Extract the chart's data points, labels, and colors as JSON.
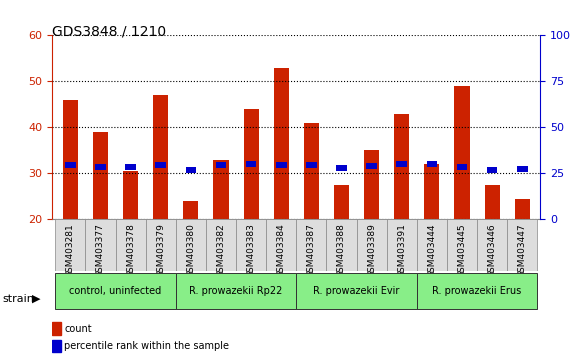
{
  "title": "GDS3848 / 1210",
  "samples": [
    "GSM403281",
    "GSM403377",
    "GSM403378",
    "GSM403379",
    "GSM403380",
    "GSM403382",
    "GSM403383",
    "GSM403384",
    "GSM403387",
    "GSM403388",
    "GSM403389",
    "GSM403391",
    "GSM403444",
    "GSM403445",
    "GSM403446",
    "GSM403447"
  ],
  "counts": [
    46,
    39,
    30.5,
    47,
    24,
    33,
    44,
    53,
    41,
    27.5,
    35,
    43,
    32,
    49,
    27.5,
    24.5
  ],
  "percentiles": [
    29.5,
    28.5,
    28.5,
    29.5,
    27,
    29.5,
    30,
    29.5,
    29.5,
    28,
    29,
    30,
    30,
    28.5,
    27,
    27.5
  ],
  "ylim_left": [
    20,
    60
  ],
  "ylim_right": [
    0,
    100
  ],
  "yticks_left": [
    20,
    30,
    40,
    50,
    60
  ],
  "yticks_right": [
    0,
    25,
    50,
    75,
    100
  ],
  "bar_color": "#cc2200",
  "percentile_color": "#0000cc",
  "grid_color": "#000000",
  "bg_color": "#ffffff",
  "title_color": "#000000",
  "left_axis_color": "#cc2200",
  "right_axis_color": "#0000cc",
  "strain_groups": [
    {
      "label": "control, uninfected",
      "start": 0,
      "end": 4,
      "color": "#88ee88"
    },
    {
      "label": "R. prowazekii Rp22",
      "start": 4,
      "end": 8,
      "color": "#88ee88"
    },
    {
      "label": "R. prowazekii Evir",
      "start": 8,
      "end": 12,
      "color": "#88ee88"
    },
    {
      "label": "R. prowazekii Erus",
      "start": 12,
      "end": 16,
      "color": "#88ee88"
    }
  ],
  "legend_count_color": "#cc2200",
  "legend_pct_color": "#0000cc",
  "legend_count_label": "count",
  "legend_pct_label": "percentile rank within the sample",
  "strain_label": "strain"
}
